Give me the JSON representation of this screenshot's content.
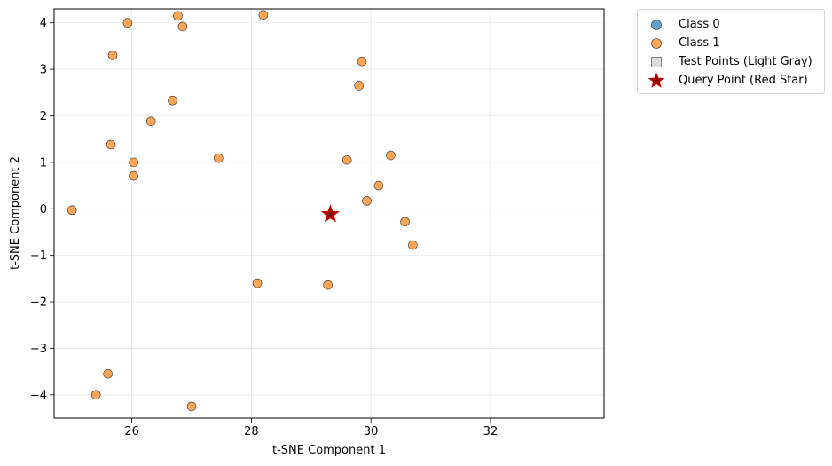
{
  "chart_data": {
    "type": "scatter",
    "xlabel": "t-SNE Component 1",
    "ylabel": "t-SNE Component 2",
    "xlim": [
      24.7,
      33.9
    ],
    "ylim": [
      -4.5,
      4.3
    ],
    "xticks": [
      26,
      28,
      30,
      32
    ],
    "yticks": [
      -4,
      -3,
      -2,
      -1,
      0,
      1,
      2,
      3,
      4
    ],
    "grid": true,
    "legend_position": "outside top-right",
    "colors": {
      "class_0": "#1f77b4",
      "class_1": "#ff7f0e",
      "test_points": "#d3d3d3",
      "query": "#8b0000"
    },
    "series": [
      {
        "name": "Class 0",
        "marker": "circle",
        "color": "#1f77b4",
        "points": []
      },
      {
        "name": "Class 1",
        "marker": "circle",
        "color": "#ff7f0e",
        "points": [
          [
            25.0,
            -0.03
          ],
          [
            25.4,
            -4.0
          ],
          [
            25.6,
            -3.55
          ],
          [
            25.65,
            1.38
          ],
          [
            25.68,
            3.3
          ],
          [
            25.93,
            4.0
          ],
          [
            26.03,
            1.0
          ],
          [
            26.03,
            0.71
          ],
          [
            26.32,
            1.88
          ],
          [
            26.68,
            2.33
          ],
          [
            26.77,
            4.15
          ],
          [
            26.85,
            3.92
          ],
          [
            27.0,
            -4.25
          ],
          [
            27.45,
            1.09
          ],
          [
            28.1,
            -1.6
          ],
          [
            28.2,
            4.17
          ],
          [
            29.28,
            -1.64
          ],
          [
            29.6,
            1.05
          ],
          [
            29.8,
            2.65
          ],
          [
            29.85,
            3.17
          ],
          [
            29.93,
            0.17
          ],
          [
            30.13,
            0.5
          ],
          [
            30.33,
            1.15
          ],
          [
            30.57,
            -0.28
          ],
          [
            30.7,
            -0.78
          ]
        ]
      },
      {
        "name": "Test Points (Light Gray)",
        "marker": "square",
        "color": "#d3d3d3",
        "points": []
      },
      {
        "name": "Query Point (Red Star)",
        "marker": "star",
        "color": "#8b0000",
        "points": [
          [
            29.32,
            -0.12
          ]
        ]
      }
    ]
  }
}
